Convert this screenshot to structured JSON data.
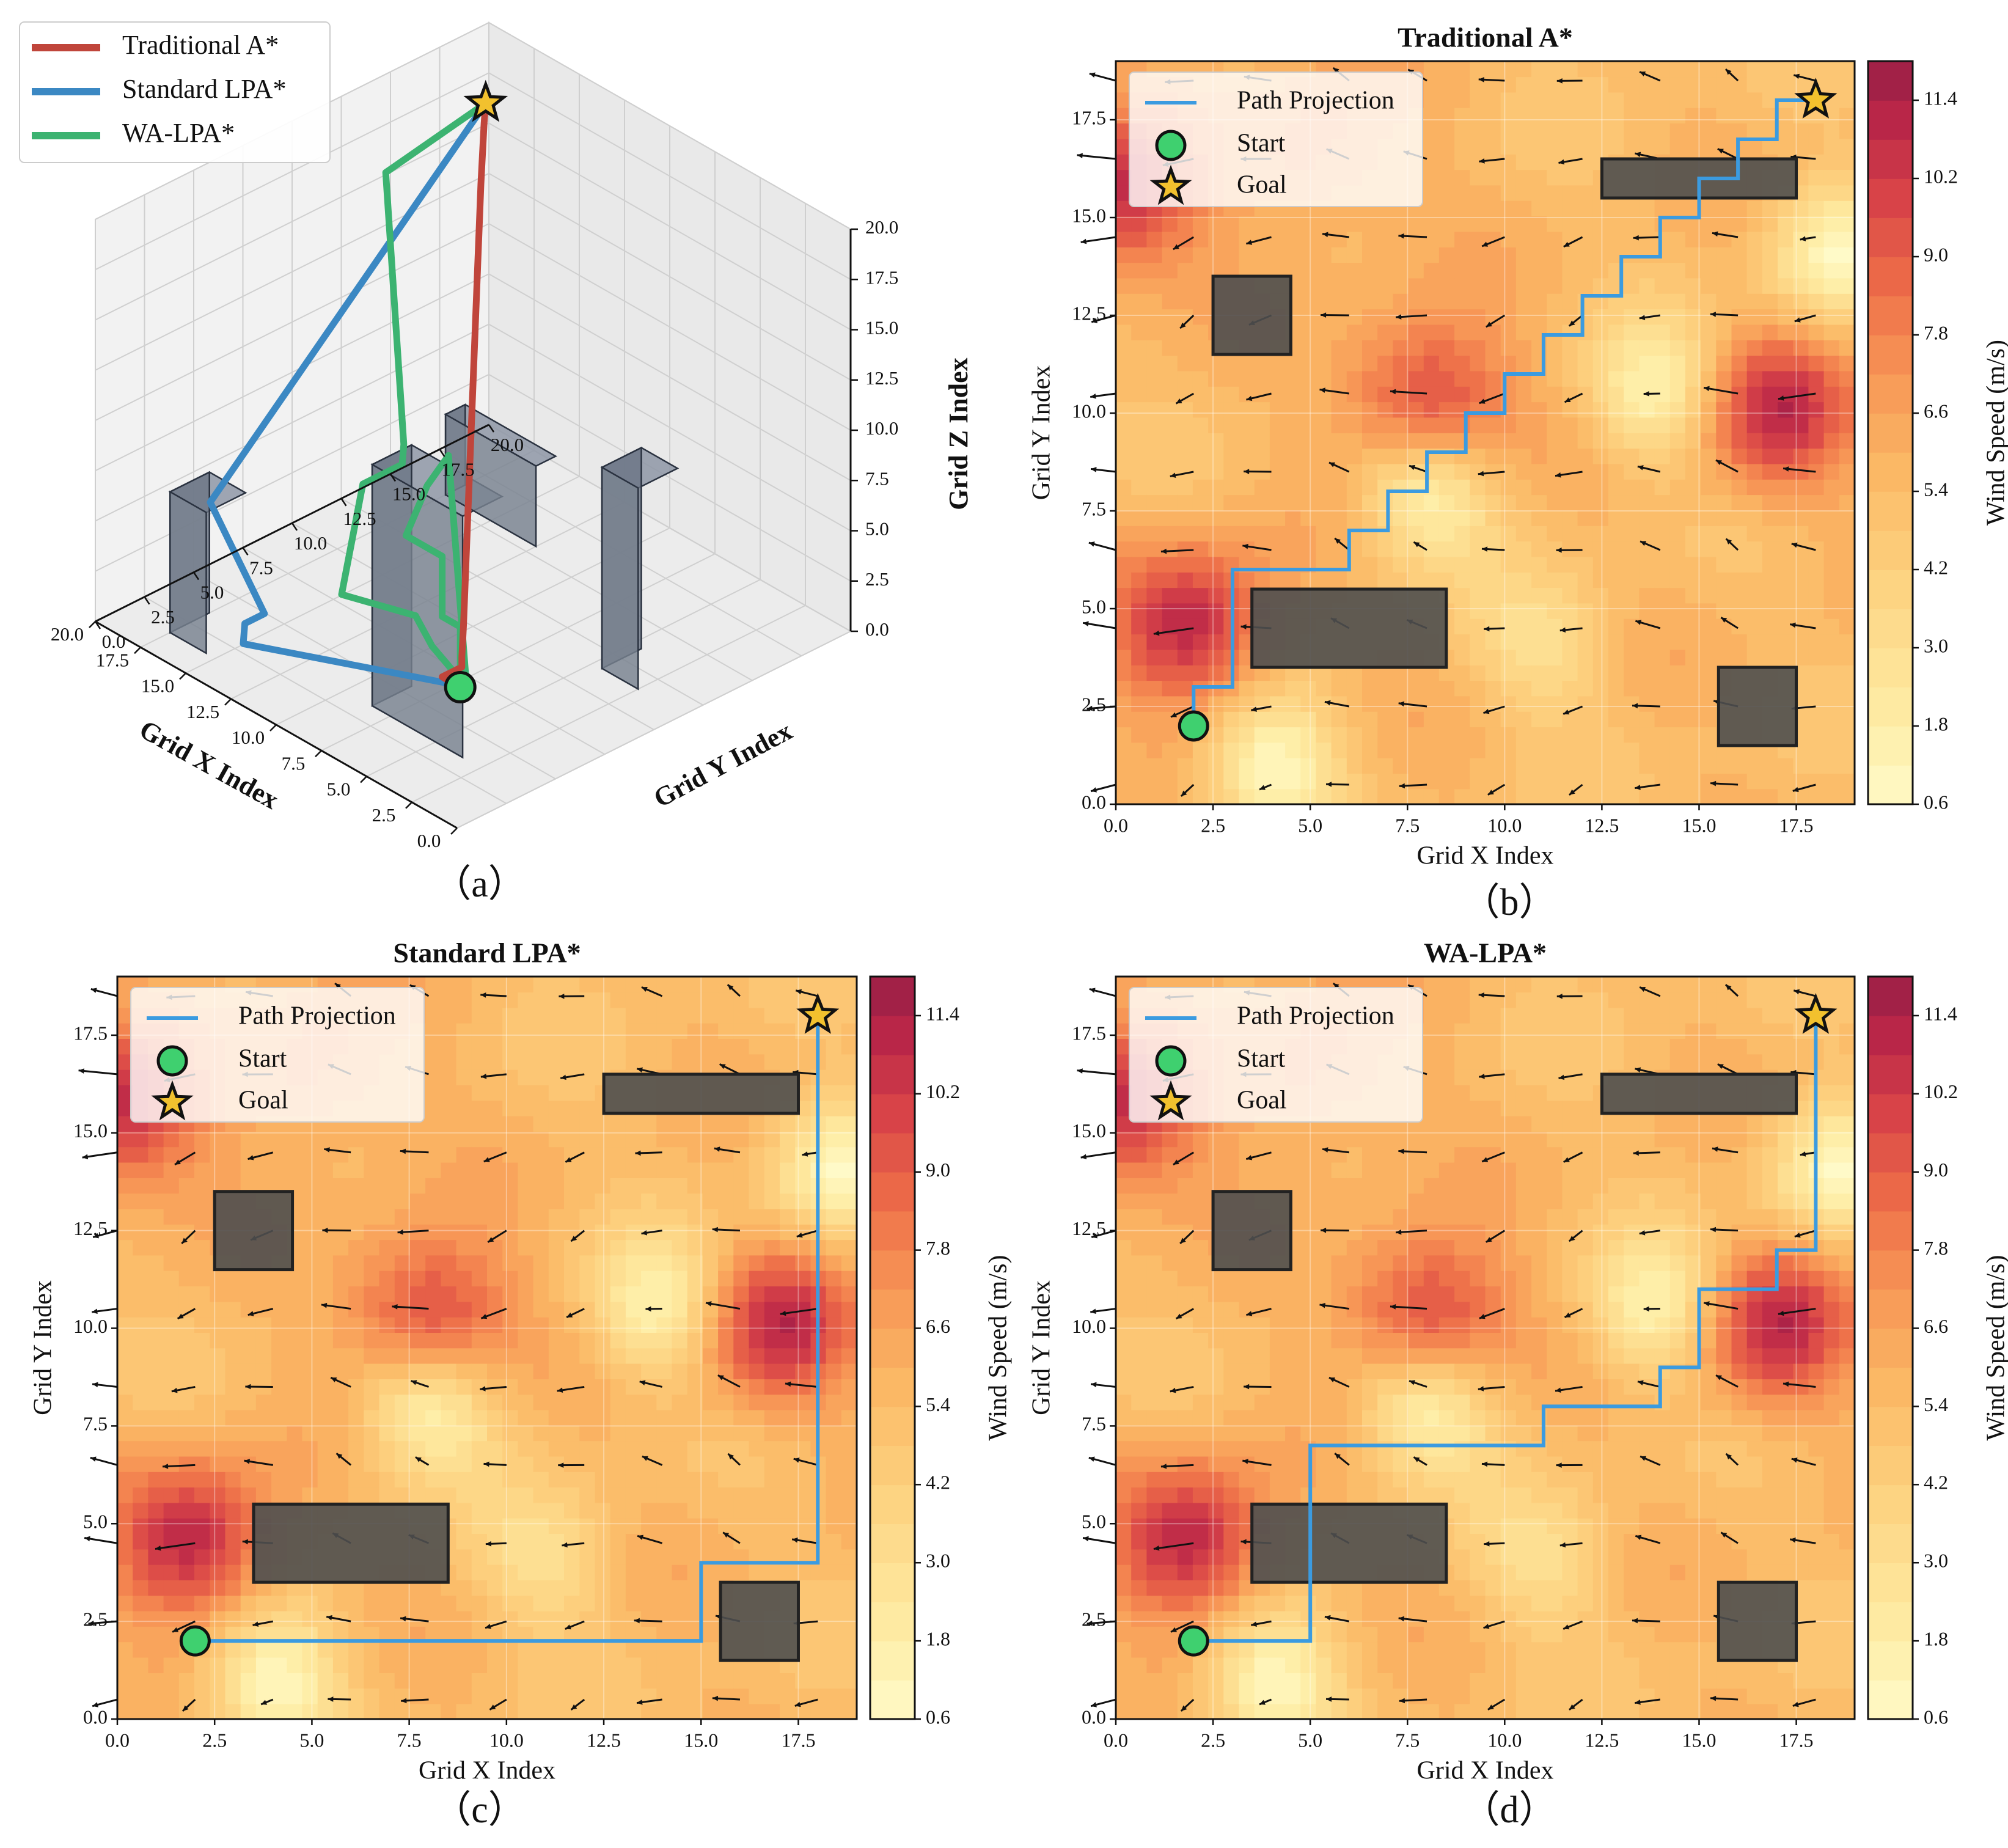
{
  "colors": {
    "traditional": "#c0453b",
    "standard": "#3b88c3",
    "walpa": "#3cb371",
    "projection": "#3b9be0",
    "start": "#3fd06f",
    "goal": "#f2c12e",
    "obstacle": "#4f4f4f"
  },
  "captions": {
    "a": "（a）",
    "b": "（b）",
    "c": "（c）",
    "d": "（d）"
  },
  "chart_data": [
    {
      "id": "a",
      "type": "line3d",
      "title": "",
      "xlabel": "Grid X Index",
      "ylabel": "Grid Y Index",
      "zlabel": "Grid Z Index",
      "xlim": [
        0,
        20
      ],
      "ylim": [
        0,
        20
      ],
      "zlim": [
        0,
        20
      ],
      "xticks": [
        "0.0",
        "2.5",
        "5.0",
        "7.5",
        "10.0",
        "12.5",
        "15.0",
        "17.5",
        "20.0"
      ],
      "yticks": [
        "0.0",
        "2.5",
        "5.0",
        "7.5",
        "10.0",
        "12.5",
        "15.0",
        "17.5",
        "20.0"
      ],
      "zticks": [
        "0.0",
        "2.5",
        "5.0",
        "7.5",
        "10.0",
        "12.5",
        "15.0",
        "17.5",
        "20.0"
      ],
      "legend": [
        {
          "key": "traditional",
          "label": "Traditional A*"
        },
        {
          "key": "standard",
          "label": "Standard LPA*"
        },
        {
          "key": "walpa",
          "label": "WA-LPA*"
        }
      ],
      "start": [
        2,
        2,
        5
      ],
      "goal": [
        18,
        18,
        18
      ],
      "series": [
        {
          "name": "Traditional A*",
          "key": "traditional",
          "points": [
            [
              2,
              2,
              5
            ],
            [
              3,
              2,
              5
            ],
            [
              3,
              3,
              5
            ],
            [
              3,
              3,
              5.5
            ],
            [
              4,
              4,
              6
            ],
            [
              5,
              5,
              7
            ],
            [
              6,
              6,
              8
            ],
            [
              7,
              7,
              9
            ],
            [
              8,
              8,
              10
            ],
            [
              9,
              9,
              11
            ],
            [
              10,
              10,
              12
            ],
            [
              11,
              11,
              13
            ],
            [
              12,
              12,
              14
            ],
            [
              13,
              13,
              15
            ],
            [
              14,
              14,
              16
            ],
            [
              15,
              15,
              17
            ],
            [
              16,
              16,
              17.5
            ],
            [
              17,
              17,
              18
            ],
            [
              18,
              18,
              18
            ]
          ]
        },
        {
          "name": "Standard LPA*",
          "key": "standard",
          "points": [
            [
              2,
              2,
              5
            ],
            [
              6,
              6,
              1
            ],
            [
              14,
              2,
              1
            ],
            [
              15,
              3,
              1
            ],
            [
              15,
              4,
              1
            ],
            [
              18,
              4,
              5
            ],
            [
              18,
              18,
              18
            ]
          ]
        },
        {
          "name": "WA-LPA*",
          "key": "walpa",
          "points": [
            [
              2,
              2,
              5
            ],
            [
              2,
              2,
              8
            ],
            [
              3,
              2,
              8
            ],
            [
              3,
              2,
              11
            ],
            [
              5,
              2,
              11
            ],
            [
              6,
              4,
              12
            ],
            [
              7,
              6,
              12
            ],
            [
              6,
              6,
              1
            ],
            [
              9,
              7,
              1
            ],
            [
              11,
              8,
              1
            ],
            [
              14,
              7,
              1
            ],
            [
              15,
              9,
              5
            ],
            [
              15,
              11,
              5
            ],
            [
              16,
              12,
              5
            ],
            [
              17,
              12,
              18
            ],
            [
              18,
              18,
              18
            ]
          ]
        }
      ],
      "obstacles": [
        {
          "x": [
            3.5,
            8.5
          ],
          "y": [
            3.5,
            5.5
          ],
          "z": [
            0,
            12
          ]
        },
        {
          "x": [
            2.5,
            4.5
          ],
          "y": [
            11.5,
            13.5
          ],
          "z": [
            0,
            10
          ]
        },
        {
          "x": [
            15.5,
            17.5
          ],
          "y": [
            1.5,
            3.5
          ],
          "z": [
            0,
            7
          ]
        },
        {
          "x": [
            12.5,
            17.5
          ],
          "y": [
            15.5,
            16.5
          ],
          "z": [
            0,
            4
          ]
        }
      ]
    },
    {
      "id": "b",
      "type": "heatmap",
      "title": "Traditional A*",
      "xlabel": "Grid X Index",
      "ylabel": "Grid Y Index",
      "colorbar_label": "Wind Speed (m/s)",
      "xlim": [
        0,
        19
      ],
      "ylim": [
        0,
        19
      ],
      "xticks": [
        "0.0",
        "2.5",
        "5.0",
        "7.5",
        "10.0",
        "12.5",
        "15.0",
        "17.5"
      ],
      "yticks": [
        "0.0",
        "2.5",
        "5.0",
        "7.5",
        "10.0",
        "12.5",
        "15.0",
        "17.5"
      ],
      "colorbar_ticks": [
        "0.6",
        "1.8",
        "3.0",
        "4.2",
        "5.4",
        "6.6",
        "7.8",
        "9.0",
        "10.2",
        "11.4"
      ],
      "colorbar_range": [
        0.6,
        12.0
      ],
      "legend": [
        "Path Projection",
        "Start",
        "Goal"
      ],
      "start": [
        2,
        2
      ],
      "goal": [
        18,
        18
      ],
      "path": [
        [
          2,
          2
        ],
        [
          2,
          3
        ],
        [
          3,
          3
        ],
        [
          3,
          6
        ],
        [
          6,
          6
        ],
        [
          6,
          7
        ],
        [
          7,
          7
        ],
        [
          7,
          8
        ],
        [
          8,
          8
        ],
        [
          8,
          9
        ],
        [
          9,
          9
        ],
        [
          9,
          10
        ],
        [
          10,
          10
        ],
        [
          10,
          11
        ],
        [
          11,
          11
        ],
        [
          11,
          12
        ],
        [
          12,
          12
        ],
        [
          12,
          13
        ],
        [
          13,
          13
        ],
        [
          13,
          14
        ],
        [
          14,
          14
        ],
        [
          14,
          15
        ],
        [
          15,
          15
        ],
        [
          15,
          16
        ],
        [
          16,
          16
        ],
        [
          16,
          17
        ],
        [
          17,
          17
        ],
        [
          17,
          18
        ],
        [
          18,
          18
        ]
      ]
    },
    {
      "id": "c",
      "type": "heatmap",
      "title": "Standard LPA*",
      "xlabel": "Grid X Index",
      "ylabel": "Grid Y Index",
      "colorbar_label": "Wind Speed (m/s)",
      "xlim": [
        0,
        19
      ],
      "ylim": [
        0,
        19
      ],
      "xticks": [
        "0.0",
        "2.5",
        "5.0",
        "7.5",
        "10.0",
        "12.5",
        "15.0",
        "17.5"
      ],
      "yticks": [
        "0.0",
        "2.5",
        "5.0",
        "7.5",
        "10.0",
        "12.5",
        "15.0",
        "17.5"
      ],
      "colorbar_ticks": [
        "0.6",
        "1.8",
        "3.0",
        "4.2",
        "5.4",
        "6.6",
        "7.8",
        "9.0",
        "10.2",
        "11.4"
      ],
      "colorbar_range": [
        0.6,
        12.0
      ],
      "legend": [
        "Path Projection",
        "Start",
        "Goal"
      ],
      "start": [
        2,
        2
      ],
      "goal": [
        18,
        18
      ],
      "path": [
        [
          2,
          2
        ],
        [
          15,
          2
        ],
        [
          15,
          4
        ],
        [
          18,
          4
        ],
        [
          18,
          18
        ]
      ]
    },
    {
      "id": "d",
      "type": "heatmap",
      "title": "WA-LPA*",
      "xlabel": "Grid X Index",
      "ylabel": "Grid Y Index",
      "colorbar_label": "Wind Speed (m/s)",
      "xlim": [
        0,
        19
      ],
      "ylim": [
        0,
        19
      ],
      "xticks": [
        "0.0",
        "2.5",
        "5.0",
        "7.5",
        "10.0",
        "12.5",
        "15.0",
        "17.5"
      ],
      "yticks": [
        "0.0",
        "2.5",
        "5.0",
        "7.5",
        "10.0",
        "12.5",
        "15.0",
        "17.5"
      ],
      "colorbar_ticks": [
        "0.6",
        "1.8",
        "3.0",
        "4.2",
        "5.4",
        "6.6",
        "7.8",
        "9.0",
        "10.2",
        "11.4"
      ],
      "colorbar_range": [
        0.6,
        12.0
      ],
      "legend": [
        "Path Projection",
        "Start",
        "Goal"
      ],
      "start": [
        2,
        2
      ],
      "goal": [
        18,
        18
      ],
      "path": [
        [
          2,
          2
        ],
        [
          5,
          2
        ],
        [
          5,
          7
        ],
        [
          11,
          7
        ],
        [
          11,
          8
        ],
        [
          14,
          8
        ],
        [
          14,
          9
        ],
        [
          15,
          9
        ],
        [
          15,
          11
        ],
        [
          17,
          11
        ],
        [
          17,
          12
        ],
        [
          18,
          12
        ],
        [
          18,
          18
        ]
      ]
    }
  ],
  "wind_field": {
    "obstacles": [
      {
        "x": [
          3.5,
          8.5
        ],
        "y": [
          3.5,
          5.5
        ]
      },
      {
        "x": [
          2.5,
          4.5
        ],
        "y": [
          11.5,
          13.5
        ]
      },
      {
        "x": [
          15.5,
          17.5
        ],
        "y": [
          1.5,
          3.5
        ]
      },
      {
        "x": [
          12.5,
          17.5
        ],
        "y": [
          15.5,
          16.5
        ]
      }
    ],
    "hotspots": [
      {
        "x": 2,
        "y": 4.5,
        "speed": 11.5
      },
      {
        "x": 0,
        "y": 15.5,
        "speed": 11.0
      },
      {
        "x": 8,
        "y": 10.3,
        "speed": 11.0
      },
      {
        "x": 16.8,
        "y": 10,
        "speed": 11.2
      },
      {
        "x": 5,
        "y": 16.5,
        "speed": 8.0
      }
    ],
    "calm_spots": [
      {
        "x": 8,
        "y": 8,
        "speed": 1.2
      },
      {
        "x": 4,
        "y": 1,
        "speed": 1.2
      },
      {
        "x": 14,
        "y": 10.5,
        "speed": 1.5
      },
      {
        "x": 18.5,
        "y": 14,
        "speed": 1.5
      },
      {
        "x": 11,
        "y": 4,
        "speed": 3.5
      }
    ]
  }
}
